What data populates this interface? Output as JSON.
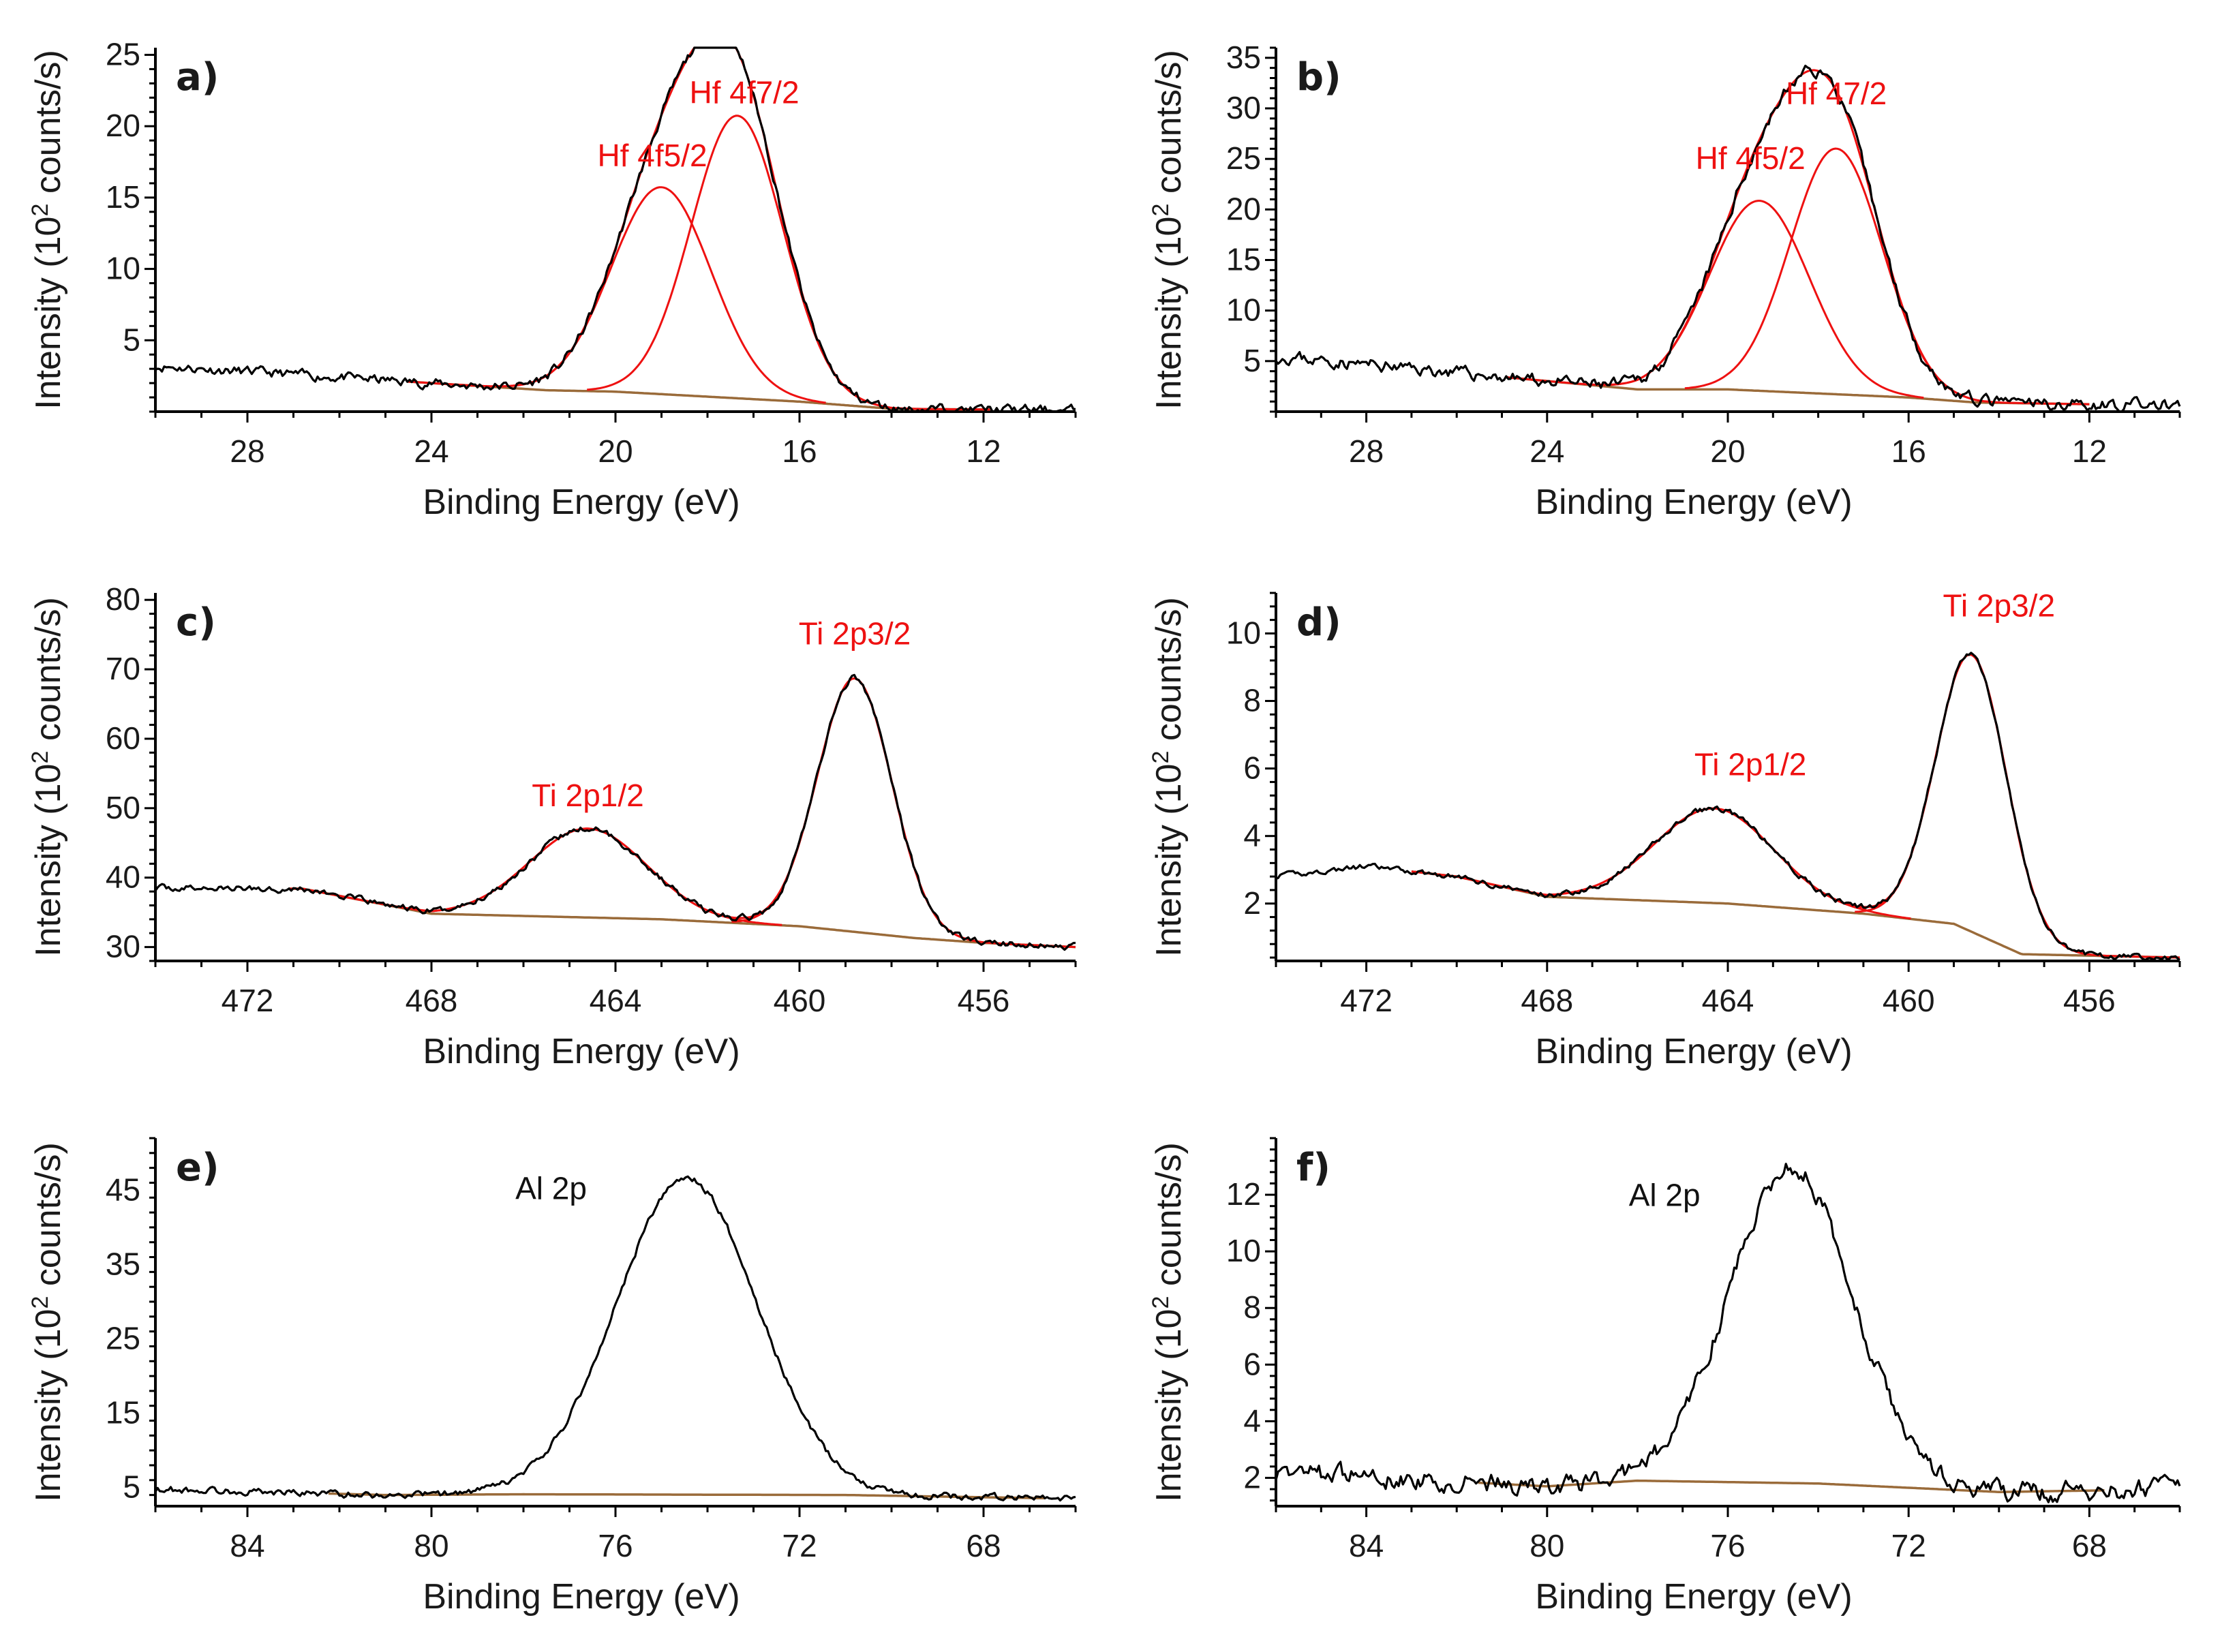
{
  "colors": {
    "component": "#ee1111",
    "background": "#9a6b3a",
    "data": "#000000"
  },
  "chart_data": [
    {
      "type": "line",
      "panel": "a)",
      "xlabel": "Binding Energy (eV)",
      "ylabel_prefix": "Intensity (10",
      "ylabel_sup": "2",
      "ylabel_suffix": " counts/s)",
      "xlim": [
        30,
        10
      ],
      "ylim": [
        0,
        25.5
      ],
      "xticks": [
        28,
        24,
        20,
        16,
        12
      ],
      "yticks": [
        5,
        10,
        15,
        20,
        25
      ],
      "background": [
        [
          30,
          3.2
        ],
        [
          21.5,
          1.5
        ],
        [
          20,
          1.4
        ],
        [
          16,
          0.7
        ],
        [
          14,
          0.2
        ],
        [
          10,
          0.1
        ]
      ],
      "peaks": [
        {
          "label": "Hf 4f5/2",
          "center": 19.0,
          "height": 14.5,
          "fwhm": 2.55,
          "label_at": [
            19.2,
            17.2
          ]
        },
        {
          "label": "Hf 4f7/2",
          "center": 17.35,
          "height": 19.8,
          "fwhm": 2.35,
          "label_at": [
            17.2,
            21.6
          ]
        }
      ],
      "noise": 0.25,
      "seed": 11
    },
    {
      "type": "line",
      "panel": "b)",
      "xlabel": "Binding Energy (eV)",
      "ylabel_prefix": "Intensity (10",
      "ylabel_sup": "2",
      "ylabel_suffix": " counts/s)",
      "xlim": [
        30,
        10
      ],
      "ylim": [
        0,
        36
      ],
      "xticks": [
        28,
        24,
        20,
        16,
        12
      ],
      "yticks": [
        5,
        10,
        15,
        20,
        25,
        30,
        35
      ],
      "background": [
        [
          30,
          5.5
        ],
        [
          22,
          2.2
        ],
        [
          20,
          2.2
        ],
        [
          16,
          1.4
        ],
        [
          14.5,
          0.9
        ],
        [
          10,
          0.6
        ]
      ],
      "peaks": [
        {
          "label": "Hf 4f5/2",
          "center": 19.3,
          "height": 18.8,
          "fwhm": 2.6,
          "label_at": [
            19.5,
            24.0
          ]
        },
        {
          "label": "Hf 47/2",
          "center": 17.6,
          "height": 24.3,
          "fwhm": 2.4,
          "label_at": [
            17.6,
            30.4
          ]
        }
      ],
      "noise": 0.45,
      "seed": 23
    },
    {
      "type": "line",
      "panel": "c)",
      "xlabel": "Binding Energy (eV)",
      "ylabel_prefix": "Intensity (10",
      "ylabel_sup": "2",
      "ylabel_suffix": " counts/s)",
      "xlim": [
        474,
        454
      ],
      "ylim": [
        28,
        81
      ],
      "xticks": [
        472,
        468,
        464,
        460,
        456
      ],
      "yticks": [
        30,
        40,
        50,
        60,
        70,
        80
      ],
      "background": [
        [
          474,
          38.5
        ],
        [
          470.8,
          38.4
        ],
        [
          468,
          34.8
        ],
        [
          463,
          34.0
        ],
        [
          460,
          33.0
        ],
        [
          457.5,
          31.3
        ],
        [
          456,
          30.6
        ],
        [
          454,
          30.0
        ]
      ],
      "peaks": [
        {
          "label": "Ti 2p1/2",
          "center": 464.6,
          "height": 12.8,
          "fwhm": 3.0,
          "label_at": [
            464.6,
            50.3
          ]
        },
        {
          "label": "Ti 2p3/2",
          "center": 458.8,
          "height": 36.5,
          "fwhm": 1.9,
          "label_at": [
            458.8,
            73.6
          ]
        }
      ],
      "noise": 0.35,
      "seed": 37
    },
    {
      "type": "line",
      "panel": "d)",
      "xlabel": "Binding Energy (eV)",
      "ylabel_prefix": "Intensity (10",
      "ylabel_sup": "2",
      "ylabel_suffix": " counts/s)",
      "xlim": [
        474,
        454
      ],
      "ylim": [
        0.3,
        11.2
      ],
      "xticks": [
        472,
        468,
        464,
        460,
        456
      ],
      "yticks": [
        2,
        4,
        6,
        8,
        10
      ],
      "background": [
        [
          474,
          2.8
        ],
        [
          472,
          3.1
        ],
        [
          470,
          2.8
        ],
        [
          468,
          2.2
        ],
        [
          464,
          2.0
        ],
        [
          461,
          1.7
        ],
        [
          459,
          1.4
        ],
        [
          457.5,
          0.5
        ],
        [
          454,
          0.4
        ]
      ],
      "peaks": [
        {
          "label": "Ti 2p1/2",
          "center": 464.3,
          "height": 2.8,
          "fwhm": 3.1,
          "label_at": [
            463.5,
            5.8
          ]
        },
        {
          "label": "Ti 2p3/2",
          "center": 458.6,
          "height": 8.2,
          "fwhm": 1.85,
          "label_at": [
            458.0,
            10.5
          ]
        }
      ],
      "noise": 0.06,
      "seed": 41
    },
    {
      "type": "line",
      "panel": "e)",
      "xlabel": "Binding Energy (eV)",
      "ylabel_prefix": "Intensity (10",
      "ylabel_sup": "2",
      "ylabel_suffix": " counts/s)",
      "xlim": [
        86,
        66
      ],
      "ylim": [
        2.5,
        52
      ],
      "xticks": [
        84,
        80,
        76,
        72,
        68
      ],
      "yticks": [
        5,
        15,
        25,
        35,
        45
      ],
      "background": [
        [
          86,
          4.8
        ],
        [
          81,
          4.0
        ],
        [
          78,
          4.1
        ],
        [
          71,
          4.0
        ],
        [
          66,
          3.5
        ]
      ],
      "peaks": [
        {
          "label": "Al 2p",
          "center": 74.45,
          "height": 42.5,
          "fwhm": 3.6,
          "label_at": [
            77.4,
            43.8
          ]
        }
      ],
      "component_visible": false,
      "noise": 0.35,
      "seed": 53
    },
    {
      "type": "line",
      "panel": "f)",
      "xlabel": "Binding Energy (eV)",
      "ylabel_prefix": "Intensity (10",
      "ylabel_sup": "2",
      "ylabel_suffix": " counts/s)",
      "xlim": [
        86,
        66
      ],
      "ylim": [
        1.0,
        14
      ],
      "xticks": [
        84,
        80,
        76,
        72,
        68
      ],
      "yticks": [
        2,
        4,
        6,
        8,
        10,
        12
      ],
      "background": [
        [
          86,
          2.2
        ],
        [
          80,
          1.7
        ],
        [
          78,
          1.9
        ],
        [
          74,
          1.8
        ],
        [
          70,
          1.5
        ],
        [
          66,
          1.6
        ]
      ],
      "peaks": [
        {
          "label": "Al 2p",
          "center": 74.6,
          "height": 11.2,
          "fwhm": 3.2,
          "label_at": [
            77.4,
            11.6
          ]
        }
      ],
      "component_visible": false,
      "noise": 0.25,
      "seed": 67
    }
  ]
}
